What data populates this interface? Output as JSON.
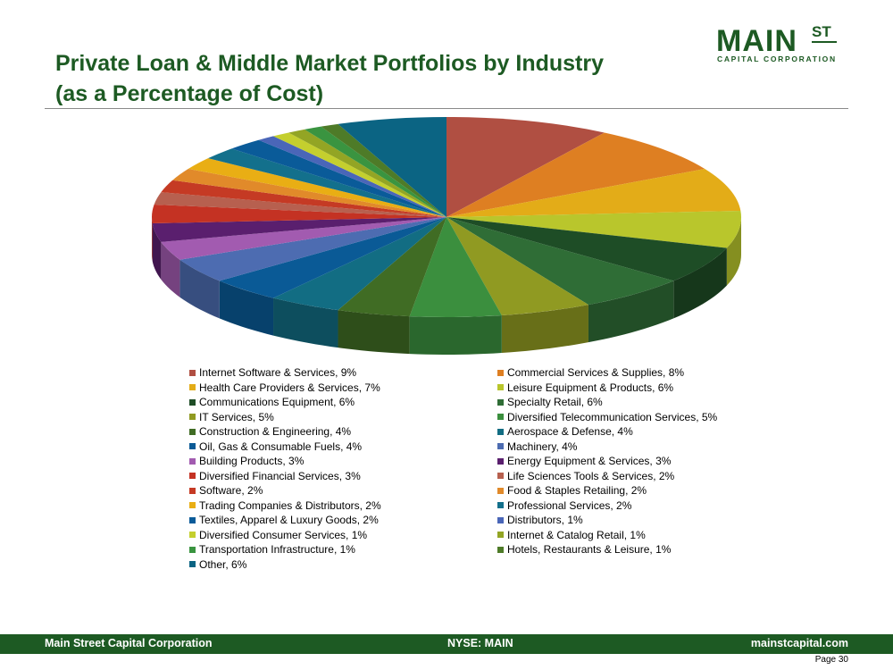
{
  "header": {
    "title_line1": "Private Loan & Middle Market Portfolios by Industry",
    "title_line2": "(as a Percentage of Cost)"
  },
  "logo": {
    "main": "MAIN",
    "superscript": "ST",
    "subtitle": "CAPITAL CORPORATION"
  },
  "colors": {
    "brand_green": "#1d5a23",
    "rule": "#8a8a8a"
  },
  "chart_data": {
    "type": "pie",
    "style": "3d",
    "legend_placement": "bottom",
    "slices": [
      {
        "label": "Internet Software & Services, 9%",
        "value": 9,
        "color": "#b04f42"
      },
      {
        "label": "Commercial Services & Supplies, 8%",
        "value": 8,
        "color": "#de7f22"
      },
      {
        "label": "Health Care Providers & Services, 7%",
        "value": 7,
        "color": "#e3ac18"
      },
      {
        "label": "Leisure Equipment & Products, 6%",
        "value": 6,
        "color": "#b9c62c"
      },
      {
        "label": "Communications Equipment, 6%",
        "value": 6,
        "color": "#1e4d26"
      },
      {
        "label": "Specialty Retail, 6%",
        "value": 6,
        "color": "#2f6d36"
      },
      {
        "label": "IT Services, 5%",
        "value": 5,
        "color": "#909a22"
      },
      {
        "label": "Diversified Telecommunication Services, 5%",
        "value": 5,
        "color": "#3b8f3e"
      },
      {
        "label": "Construction & Engineering, 4%",
        "value": 4,
        "color": "#406c24"
      },
      {
        "label": "Aerospace & Defense, 4%",
        "value": 4,
        "color": "#126d83"
      },
      {
        "label": "Oil, Gas & Consumable Fuels, 4%",
        "value": 4,
        "color": "#0a5a96"
      },
      {
        "label": "Machinery, 4%",
        "value": 4,
        "color": "#4d6cb1"
      },
      {
        "label": "Building Products, 3%",
        "value": 3,
        "color": "#a25bb0"
      },
      {
        "label": "Energy Equipment & Services, 3%",
        "value": 3,
        "color": "#5a1f6e"
      },
      {
        "label": "Diversified Financial Services, 3%",
        "value": 3,
        "color": "#c43223"
      },
      {
        "label": "Life Sciences Tools & Services, 2%",
        "value": 2,
        "color": "#b7604f"
      },
      {
        "label": "Software, 2%",
        "value": 2,
        "color": "#c53a24"
      },
      {
        "label": "Food & Staples Retailing, 2%",
        "value": 2,
        "color": "#e18a2a"
      },
      {
        "label": "Trading Companies & Distributors, 2%",
        "value": 2,
        "color": "#e9ae14"
      },
      {
        "label": "Professional Services, 2%",
        "value": 2,
        "color": "#13708c"
      },
      {
        "label": "Textiles, Apparel & Luxury Goods, 2%",
        "value": 2,
        "color": "#0a5b99"
      },
      {
        "label": "Distributors, 1%",
        "value": 1,
        "color": "#4a66b8"
      },
      {
        "label": "Diversified Consumer Services, 1%",
        "value": 1,
        "color": "#c4cf2e"
      },
      {
        "label": "Internet & Catalog Retail, 1%",
        "value": 1,
        "color": "#93a524"
      },
      {
        "label": "Transportation Infrastructure, 1%",
        "value": 1,
        "color": "#3a9440"
      },
      {
        "label": "Hotels, Restaurants & Leisure, 1%",
        "value": 1,
        "color": "#4e7b28"
      },
      {
        "label": "Other, 6%",
        "value": 6,
        "color": "#0b6483"
      }
    ]
  },
  "footer": {
    "company": "Main Street Capital Corporation",
    "ticker": "NYSE: MAIN",
    "website": "mainstcapital.com",
    "page": "Page  30"
  }
}
